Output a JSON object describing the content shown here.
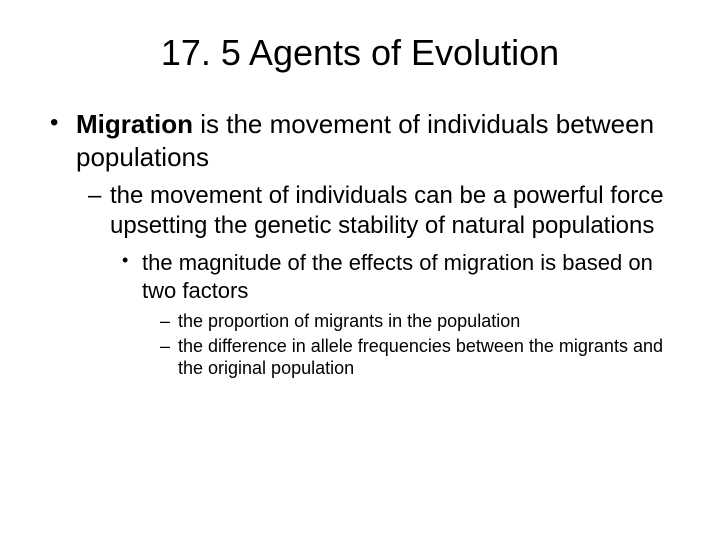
{
  "title": "17. 5 Agents of Evolution",
  "bullets": {
    "lvl1_bold": "Migration",
    "lvl1_rest": " is the movement of individuals between populations",
    "lvl2_a": "the movement of individuals can be a powerful force upsetting the genetic stability of natural populations",
    "lvl3_a": "the magnitude of the effects of migration is based on two factors",
    "lvl4_a": "the proportion of migrants in the population",
    "lvl4_b": "the difference in allele frequencies between the migrants and the original population"
  },
  "style": {
    "background_color": "#ffffff",
    "text_color": "#000000",
    "title_fontsize": 36,
    "lvl1_fontsize": 26,
    "lvl2_fontsize": 24,
    "lvl3_fontsize": 22,
    "lvl4_fontsize": 18,
    "font_family": "Arial"
  }
}
